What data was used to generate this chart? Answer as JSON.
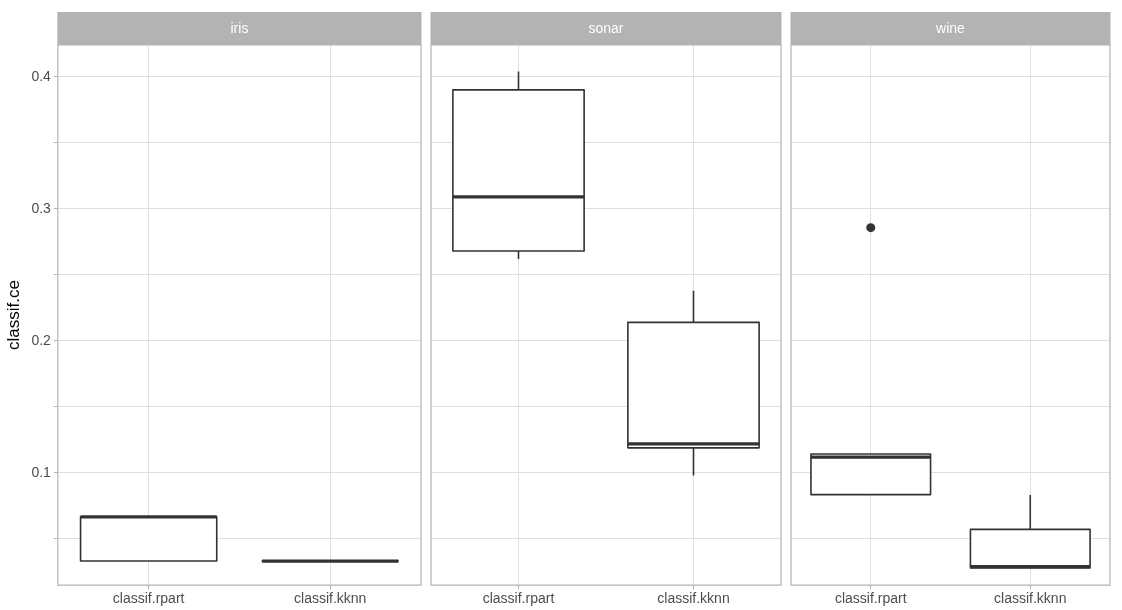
{
  "chart_data": [
    {
      "type": "box",
      "title": "iris",
      "ylabel": "classif.ce",
      "categories": [
        "classif.rpart",
        "classif.kknn"
      ],
      "boxes": [
        {
          "low": 0.0333,
          "q1": 0.0333,
          "median": 0.0667,
          "q3": 0.0667,
          "high": 0.0667
        },
        {
          "low": 0.0333,
          "q1": 0.0333,
          "median": 0.0333,
          "q3": 0.0333,
          "high": 0.0333
        }
      ],
      "ylim": [
        0.015,
        0.424
      ],
      "yticks": [
        {
          "value": 0.05,
          "label": null
        },
        0.1,
        {
          "value": 0.15,
          "label": null
        },
        0.2,
        {
          "value": 0.25,
          "label": null
        },
        0.3,
        {
          "value": 0.35,
          "label": null
        },
        0.4
      ],
      "grid": true
    },
    {
      "type": "box",
      "title": "sonar",
      "categories": [
        "classif.rpart",
        "classif.kknn"
      ],
      "boxes": [
        {
          "low": 0.262,
          "q1": 0.268,
          "median": 0.309,
          "q3": 0.39,
          "high": 0.404
        },
        {
          "low": 0.098,
          "q1": 0.119,
          "median": 0.122,
          "q3": 0.214,
          "high": 0.238
        }
      ],
      "ylim": [
        0.015,
        0.424
      ],
      "yticks": [
        {
          "value": 0.05,
          "label": null
        },
        0.1,
        {
          "value": 0.15,
          "label": null
        },
        0.2,
        {
          "value": 0.25,
          "label": null
        },
        0.3,
        {
          "value": 0.35,
          "label": null
        },
        0.4
      ],
      "grid": true,
      "tick_labels": "x"
    },
    {
      "type": "box",
      "title": "wine",
      "categories": [
        "classif.rpart",
        "classif.kknn"
      ],
      "boxes": [
        {
          "low": 0.0836,
          "q1": 0.0836,
          "median": 0.112,
          "q3": 0.1143,
          "high": 0.1143,
          "outliers": [
            0.2857
          ]
        },
        {
          "low": 0.028,
          "q1": 0.028,
          "median": 0.029,
          "q3": 0.0573,
          "high": 0.0833
        }
      ],
      "ylim": [
        0.015,
        0.424
      ],
      "yticks": [
        {
          "value": 0.05,
          "label": null
        },
        0.1,
        {
          "value": 0.15,
          "label": null
        },
        0.2,
        {
          "value": 0.25,
          "label": null
        },
        0.3,
        {
          "value": 0.35,
          "label": null
        },
        0.4
      ],
      "grid": true,
      "tick_labels": "x"
    }
  ]
}
